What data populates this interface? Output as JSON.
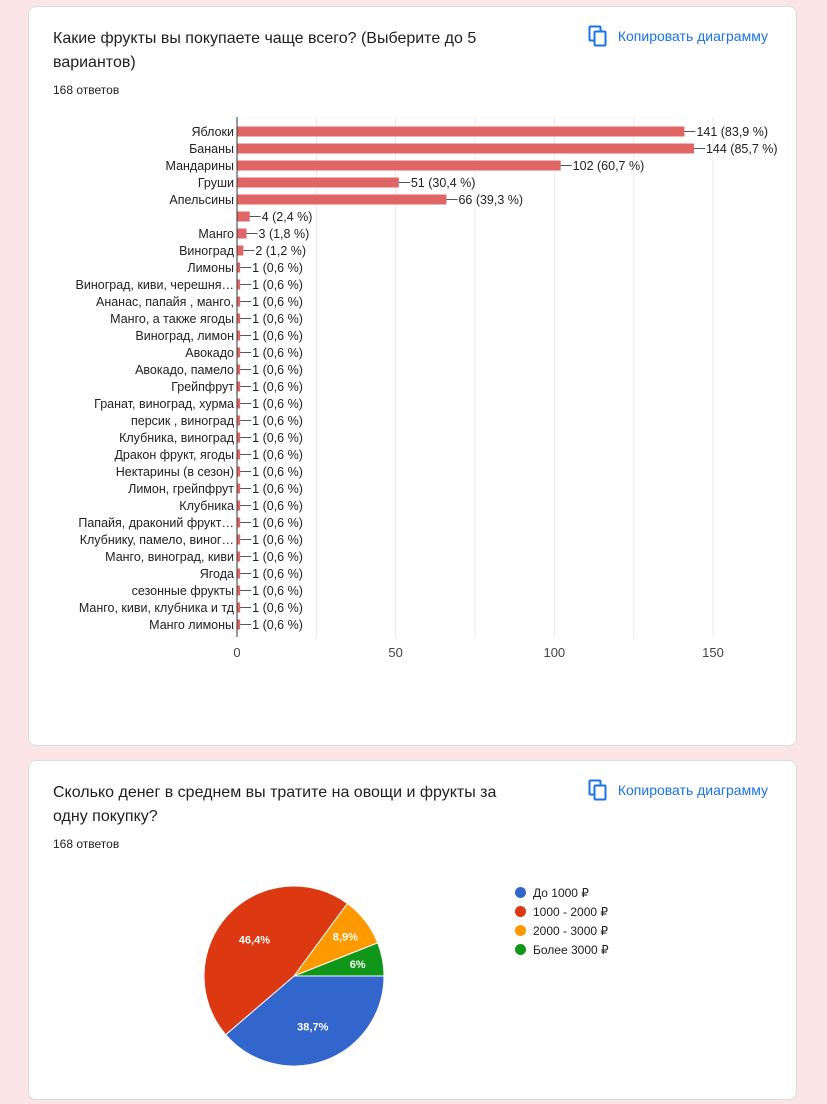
{
  "card1": {
    "title": "Какие фрукты вы покупаете чаще всего?  (Выберите до 5 вариантов)",
    "responses": "168 ответов",
    "copy_label": "Копировать диаграмму",
    "copy_icon": "copy-icon"
  },
  "card2": {
    "title": "Сколько денег в среднем вы тратите на овощи и фрукты за одну покупку?",
    "responses": "168 ответов",
    "copy_label": "Копировать диаграмму",
    "copy_icon": "copy-icon"
  },
  "colors": {
    "bar": "#e06666",
    "blue": "#3366cc",
    "red": "#dc3912",
    "orange": "#ff9900",
    "green": "#109618",
    "link": "#1a73e8"
  },
  "chart_data": [
    {
      "type": "bar",
      "orientation": "horizontal",
      "categories": [
        "Яблоки",
        "Бананы",
        "Мандарины",
        "Груши",
        "Апельсины",
        "",
        "Манго",
        "Виноград",
        "Лимоны",
        "Виноград, киви, черешня…",
        "Ананас, папайя , манго,",
        "Манго, а также ягоды",
        "Виноград, лимон",
        "Авокадо",
        "Авокадо, памело",
        "Грейпфрут",
        "Гранат, виноград, хурма",
        "персик , виноград",
        "Клубника, виноград",
        "Дракон фрукт, ягоды",
        "Нектарины (в сезон)",
        "Лимон, грейпфрут",
        "Клубника",
        "Папайя, драконий фрукт…",
        "Клубнику, памело, виног…",
        "Манго, виноград, киви",
        "Ягода",
        "сезонные фрукты",
        "Манго, киви, клубника и тд",
        "Манго лимоны"
      ],
      "values": [
        141,
        144,
        102,
        51,
        66,
        4,
        3,
        2,
        1,
        1,
        1,
        1,
        1,
        1,
        1,
        1,
        1,
        1,
        1,
        1,
        1,
        1,
        1,
        1,
        1,
        1,
        1,
        1,
        1,
        1
      ],
      "data_labels": [
        "141 (83,9 %)",
        "144 (85,7 %)",
        "102 (60,7 %)",
        "51 (30,4 %)",
        "66 (39,3 %)",
        "4 (2,4 %)",
        "3 (1,8 %)",
        "2 (1,2 %)",
        "1 (0,6 %)",
        "1 (0,6 %)",
        "1 (0,6 %)",
        "1 (0,6 %)",
        "1 (0,6 %)",
        "1 (0,6 %)",
        "1 (0,6 %)",
        "1 (0,6 %)",
        "1 (0,6 %)",
        "1 (0,6 %)",
        "1 (0,6 %)",
        "1 (0,6 %)",
        "1 (0,6 %)",
        "1 (0,6 %)",
        "1 (0,6 %)",
        "1 (0,6 %)",
        "1 (0,6 %)",
        "1 (0,6 %)",
        "1 (0,6 %)",
        "1 (0,6 %)",
        "1 (0,6 %)",
        "1 (0,6 %)"
      ],
      "xlim": [
        0,
        150
      ],
      "xticks": [
        0,
        50,
        100,
        150
      ],
      "tick_labels": [
        "0",
        "50",
        "100",
        "150"
      ],
      "grid": true
    },
    {
      "type": "pie",
      "categories": [
        "До 1000 ₽",
        "1000 - 2000 ₽",
        "2000 - 3000 ₽",
        "Более 3000 ₽"
      ],
      "values": [
        38.7,
        46.4,
        8.9,
        6.0
      ],
      "labels": [
        "38,7%",
        "46,4%",
        "8,9%",
        "6%"
      ],
      "legend": "right"
    }
  ]
}
